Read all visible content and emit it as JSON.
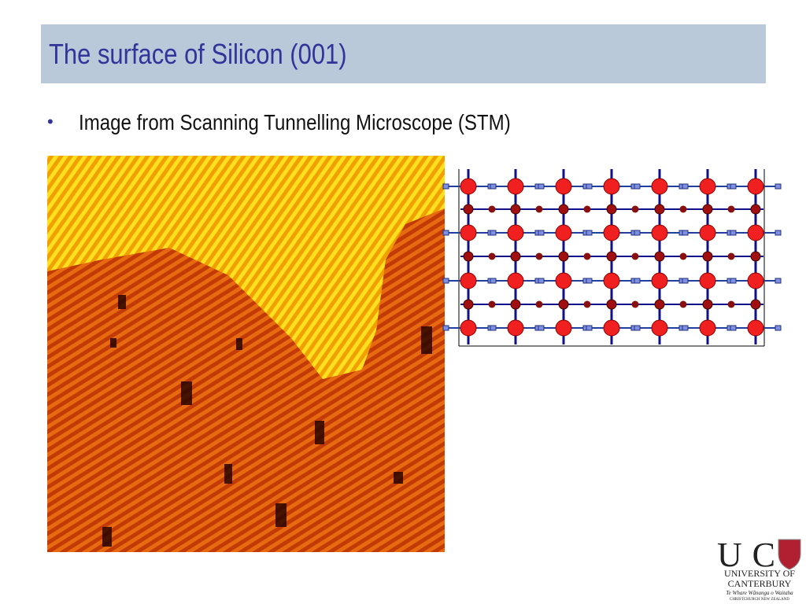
{
  "header": {
    "title": "The surface of Silicon (001)"
  },
  "bullets": [
    "Image from Scanning Tunnelling Microscope (STM)"
  ],
  "logo": {
    "mark": "UC",
    "line1": "UNIVERSITY OF",
    "line2": "CANTERBURY",
    "motto": "Te Whare Wānanga o Waitaha",
    "place": "CHRISTCHURCH NEW ZEALAND"
  }
}
